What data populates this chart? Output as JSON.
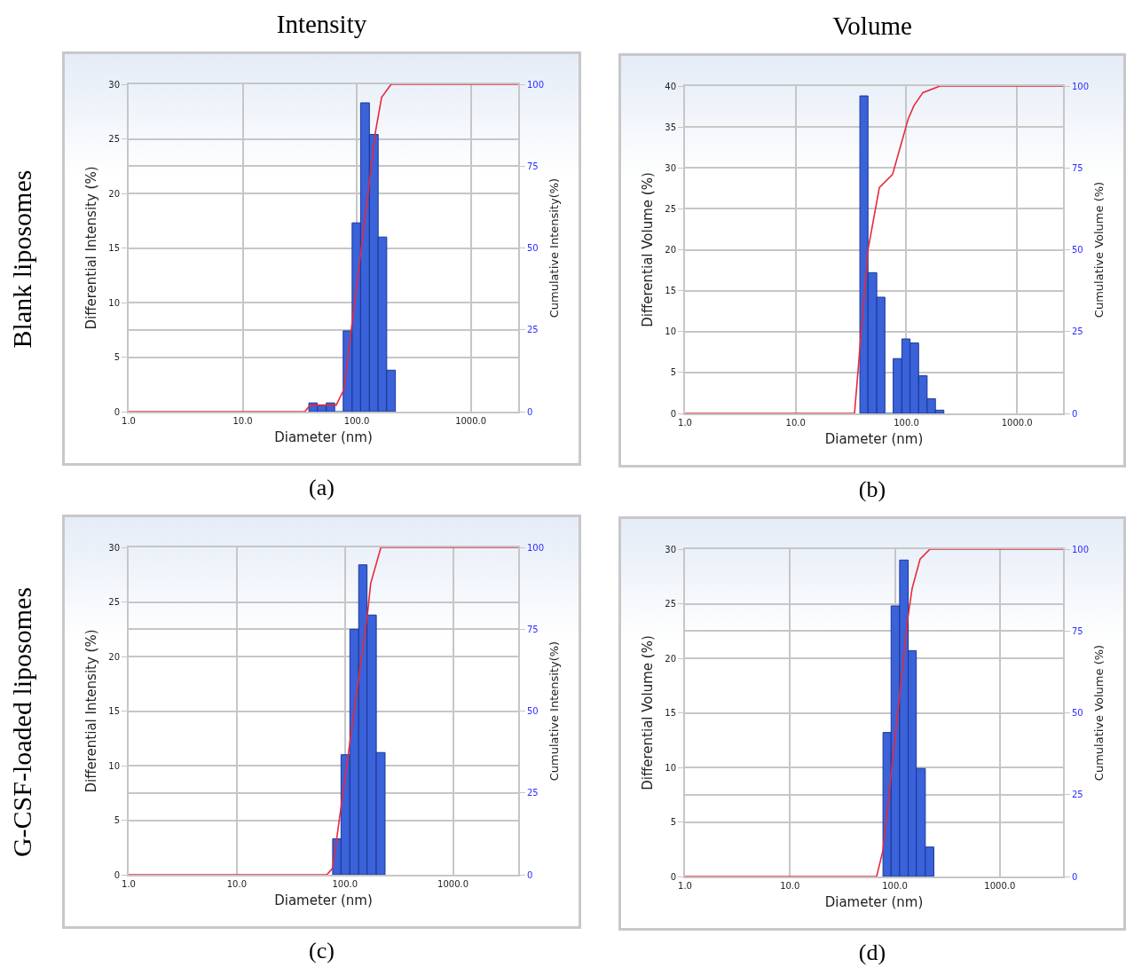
{
  "chart_data": [
    {
      "type": "histogram",
      "title": "Intensity",
      "xlabel": "Diameter (nm)",
      "ylabel": "Differential Intensity (%)",
      "y2label": "Cumulative Intensity(%)",
      "xlim": [
        1,
        2600
      ],
      "xticks": [
        {
          "value": 1,
          "label": "1.0"
        },
        {
          "value": 10,
          "label": "10.0"
        },
        {
          "value": 100,
          "label": "100.0"
        },
        {
          "value": 1000,
          "label": "1000.0"
        }
      ],
      "ylim": [
        0,
        30
      ],
      "yticks": [
        0,
        5,
        10,
        15,
        20,
        25,
        30
      ],
      "y2lim": [
        0,
        100
      ],
      "y2ticks": [
        0,
        25,
        50,
        75,
        100
      ],
      "grid": true,
      "log": "x",
      "series": [
        {
          "color": "#3a62d9",
          "bins": [
            38,
            45,
            54,
            64,
            76,
            91,
            108,
            129,
            154,
            183,
            218
          ],
          "values": [
            0.8,
            0.6,
            0.8,
            0,
            7.4,
            17.3,
            28.3,
            25.4,
            16.0,
            3.8
          ]
        },
        {
          "type": "line",
          "axis": "y2",
          "color": "#e8283c",
          "x": [
            1,
            35,
            39,
            66,
            77,
            129,
            145,
            165,
            200,
            2600
          ],
          "values": [
            0,
            0,
            2,
            2,
            6.7,
            70,
            85,
            96,
            100,
            100
          ]
        }
      ],
      "annotations": [
        "Blank liposomes",
        "(a)"
      ]
    },
    {
      "type": "histogram",
      "title": "Volume",
      "xlabel": "Diameter (nm)",
      "ylabel": "Differential Volume (%)",
      "y2label": "Cumulative Volume (%)",
      "xlim": [
        1,
        2600
      ],
      "xticks": [
        {
          "value": 1,
          "label": "1.0"
        },
        {
          "value": 10,
          "label": "10.0"
        },
        {
          "value": 100,
          "label": "100.0"
        },
        {
          "value": 1000,
          "label": "1000.0"
        }
      ],
      "ylim": [
        0,
        40
      ],
      "yticks": [
        0,
        5,
        10,
        15,
        20,
        25,
        30,
        35,
        40
      ],
      "y2lim": [
        0,
        100
      ],
      "y2ticks": [
        0,
        25,
        50,
        75,
        100
      ],
      "grid": true,
      "log": "x",
      "series": [
        {
          "color": "#3a62d9",
          "bins": [
            38,
            45,
            54,
            64,
            76,
            91,
            108,
            129,
            154,
            183,
            218
          ],
          "values": [
            38.8,
            17.2,
            14.2,
            0,
            6.7,
            9.1,
            8.6,
            4.6,
            1.8,
            0.4
          ]
        },
        {
          "type": "line",
          "axis": "y2",
          "color": "#e8283c",
          "x": [
            1,
            34,
            45,
            57,
            75,
            104,
            117,
            141,
            201,
            2600
          ],
          "values": [
            0,
            0,
            50,
            69,
            73,
            90,
            94,
            98,
            100,
            100
          ]
        }
      ],
      "annotations": [
        "(b)"
      ]
    },
    {
      "type": "histogram",
      "xlabel": "Diameter (nm)",
      "ylabel": "Differential Intensity (%)",
      "y2label": "Cumulative Intensity(%)",
      "xlim": [
        1,
        4000
      ],
      "xticks": [
        {
          "value": 1,
          "label": "1.0"
        },
        {
          "value": 10,
          "label": "10.0"
        },
        {
          "value": 100,
          "label": "100.0"
        },
        {
          "value": 1000,
          "label": "1000.0"
        }
      ],
      "ylim": [
        0,
        30
      ],
      "yticks": [
        0,
        5,
        10,
        15,
        20,
        25,
        30
      ],
      "y2lim": [
        0,
        100
      ],
      "y2ticks": [
        0,
        25,
        50,
        75,
        100
      ],
      "grid": true,
      "log": "x",
      "series": [
        {
          "color": "#3a62d9",
          "bins": [
            77,
            92,
            111,
            134,
            160,
            195,
            235
          ],
          "values": [
            3.3,
            11.0,
            22.5,
            28.4,
            23.8,
            11.2
          ]
        },
        {
          "type": "line",
          "axis": "y2",
          "color": "#e8283c",
          "x": [
            1,
            68,
            77,
            162,
            173,
            215,
            4000
          ],
          "values": [
            0,
            0,
            2,
            80,
            89,
            100,
            100
          ]
        }
      ],
      "annotations": [
        "G-CSF-loaded liposomes",
        "(c)"
      ]
    },
    {
      "type": "histogram",
      "xlabel": "Diameter (nm)",
      "ylabel": "Differential Volume (%)",
      "y2label": "Cumulative Volume (%)",
      "xlim": [
        1,
        4000
      ],
      "xticks": [
        {
          "value": 1,
          "label": "1.0"
        },
        {
          "value": 10,
          "label": "10.0"
        },
        {
          "value": 100,
          "label": "100.0"
        },
        {
          "value": 1000,
          "label": "1000.0"
        }
      ],
      "ylim": [
        0,
        30
      ],
      "yticks": [
        0,
        5,
        10,
        15,
        20,
        25,
        30
      ],
      "y2lim": [
        0,
        100
      ],
      "y2ticks": [
        0,
        25,
        50,
        75,
        100
      ],
      "grid": true,
      "log": "x",
      "series": [
        {
          "color": "#3a62d9",
          "bins": [
            77,
            92,
            111,
            134,
            160,
            195,
            235
          ],
          "values": [
            13.2,
            24.8,
            29.0,
            20.7,
            9.9,
            2.7
          ]
        },
        {
          "type": "line",
          "axis": "y2",
          "color": "#e8283c",
          "x": [
            1,
            67,
            77,
            133,
            146,
            174,
            216,
            4000
          ],
          "values": [
            0,
            0,
            8,
            79,
            88,
            97,
            100,
            100
          ]
        }
      ],
      "annotations": [
        "(d)"
      ]
    }
  ]
}
